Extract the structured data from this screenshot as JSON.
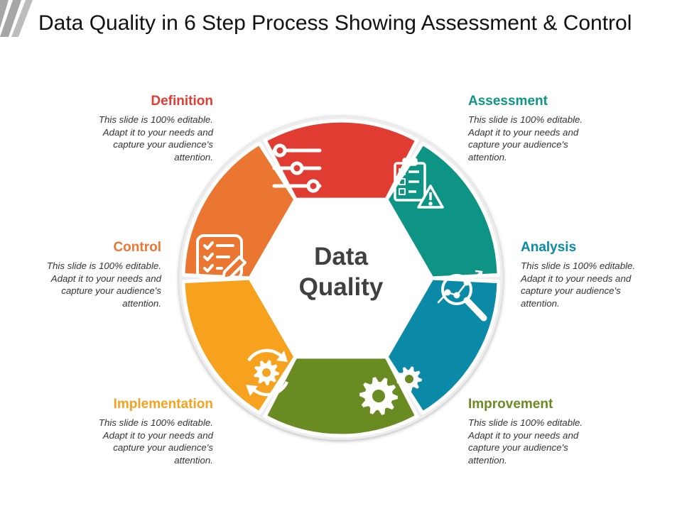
{
  "title": "Data Quality in 6 Step Process Showing Assessment & Control",
  "center_label": {
    "line1": "Data",
    "line2": "Quality"
  },
  "steps": [
    {
      "id": "definition",
      "label": "Definition",
      "color": "#e03c31",
      "icon": "sliders-icon",
      "text": [
        "This slide is 100% editable.",
        "Adapt it to your needs and",
        "capture your audience's",
        "attention."
      ]
    },
    {
      "id": "assessment",
      "label": "Assessment",
      "color": "#0e9484",
      "icon": "checklist-warning-icon",
      "text": [
        "This slide is 100% editable.",
        "Adapt it to your needs and",
        "capture your audience's",
        "attention."
      ]
    },
    {
      "id": "analysis",
      "label": "Analysis",
      "color": "#0b8aa8",
      "icon": "magnifier-chart-icon",
      "text": [
        "This slide is 100% editable.",
        "Adapt it to your needs and",
        "capture your audience's",
        "attention."
      ]
    },
    {
      "id": "improvement",
      "label": "Improvement",
      "color": "#6a8a22",
      "icon": "gears-icon",
      "text": [
        "This slide is 100% editable.",
        "Adapt it to your needs and",
        "capture your audience's",
        "attention."
      ]
    },
    {
      "id": "implementation",
      "label": "Implementation",
      "color": "#f6a21e",
      "icon": "cycle-gear-icon",
      "text": [
        "This slide is 100% editable.",
        "Adapt it to your needs and",
        "capture your audience's",
        "attention."
      ]
    },
    {
      "id": "control",
      "label": "Control",
      "color": "#ea7632",
      "icon": "checklist-pencil-icon",
      "text": [
        "This slide is 100% editable.",
        "Adapt it to your needs and",
        "capture your audience's",
        "attention."
      ]
    }
  ],
  "colors": {
    "title_bar_stripes": "#a6a6a6",
    "center_text": "#404040"
  }
}
